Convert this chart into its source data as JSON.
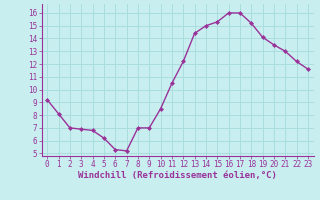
{
  "x": [
    0,
    1,
    2,
    3,
    4,
    5,
    6,
    7,
    8,
    9,
    10,
    11,
    12,
    13,
    14,
    15,
    16,
    17,
    18,
    19,
    20,
    21,
    22,
    23
  ],
  "y": [
    9.2,
    8.1,
    7.0,
    6.9,
    6.8,
    6.2,
    5.3,
    5.2,
    7.0,
    7.0,
    8.5,
    10.5,
    12.2,
    14.4,
    15.0,
    15.3,
    16.0,
    16.0,
    15.2,
    14.1,
    13.5,
    13.0,
    12.2,
    11.6
  ],
  "line_color": "#993399",
  "marker": "D",
  "marker_size": 2.0,
  "linewidth": 1.0,
  "xlabel": "Windchill (Refroidissement éolien,°C)",
  "xlabel_fontsize": 6.5,
  "ylim": [
    4.8,
    16.7
  ],
  "xlim": [
    -0.5,
    23.5
  ],
  "yticks": [
    5,
    6,
    7,
    8,
    9,
    10,
    11,
    12,
    13,
    14,
    15,
    16
  ],
  "xticks": [
    0,
    1,
    2,
    3,
    4,
    5,
    6,
    7,
    8,
    9,
    10,
    11,
    12,
    13,
    14,
    15,
    16,
    17,
    18,
    19,
    20,
    21,
    22,
    23
  ],
  "background_color": "#c8eef0",
  "grid_color": "#aadddd",
  "tick_fontsize": 5.5
}
